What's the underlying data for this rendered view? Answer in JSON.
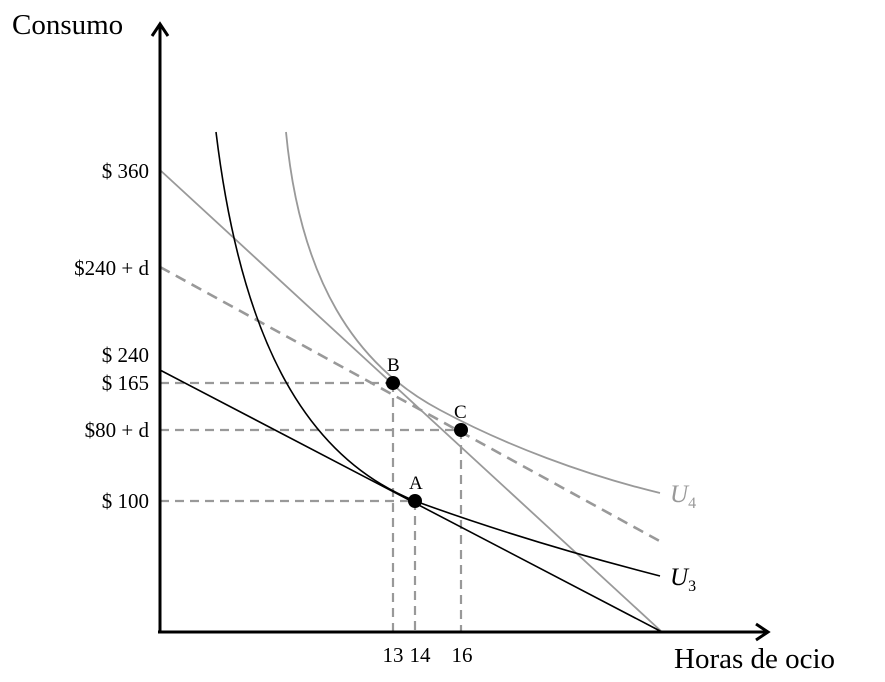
{
  "axes": {
    "y_title": "Consumo",
    "x_title": "Horas de ocio"
  },
  "y_ticks": [
    "$ 360",
    "$240 + d",
    "$ 240",
    "$ 165",
    "$80 + d",
    "$ 100"
  ],
  "x_ticks": [
    "13",
    "14",
    "16"
  ],
  "points": [
    {
      "label": "A"
    },
    {
      "label": "B"
    },
    {
      "label": "C"
    }
  ],
  "curves": {
    "u3": {
      "letter": "U",
      "sub": "3",
      "color": "#000000"
    },
    "u4": {
      "letter": "U",
      "sub": "4",
      "color": "#999999"
    }
  },
  "colors": {
    "axis": "#000000",
    "gray_line": "#999999",
    "dashed": "#999999"
  }
}
